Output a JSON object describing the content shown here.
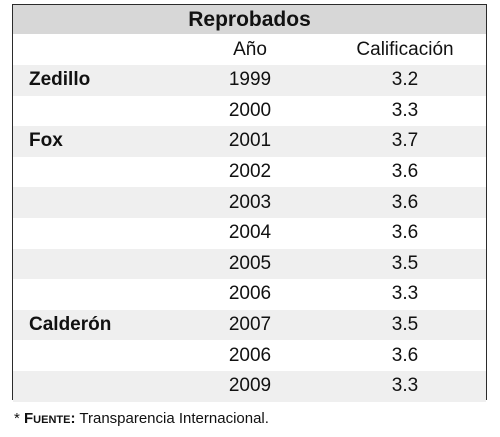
{
  "table": {
    "title": "Reprobados",
    "headers": {
      "year": "Año",
      "grade": "Calificación"
    },
    "rows": [
      {
        "name": "Zedillo",
        "year": "1999",
        "grade": "3.2"
      },
      {
        "name": "",
        "year": "2000",
        "grade": "3.3"
      },
      {
        "name": "Fox",
        "year": "2001",
        "grade": "3.7"
      },
      {
        "name": "",
        "year": "2002",
        "grade": "3.6"
      },
      {
        "name": "",
        "year": "2003",
        "grade": "3.6"
      },
      {
        "name": "",
        "year": "2004",
        "grade": "3.6"
      },
      {
        "name": "",
        "year": "2005",
        "grade": "3.5"
      },
      {
        "name": "",
        "year": "2006",
        "grade": "3.3"
      },
      {
        "name": "Calderón",
        "year": "2007",
        "grade": "3.5"
      },
      {
        "name": "",
        "year": "2006",
        "grade": "3.6"
      },
      {
        "name": "",
        "year": "2009",
        "grade": "3.3"
      }
    ]
  },
  "footnote": {
    "marker": "*",
    "label": "Fuente:",
    "text": "Transparencia Internacional."
  }
}
